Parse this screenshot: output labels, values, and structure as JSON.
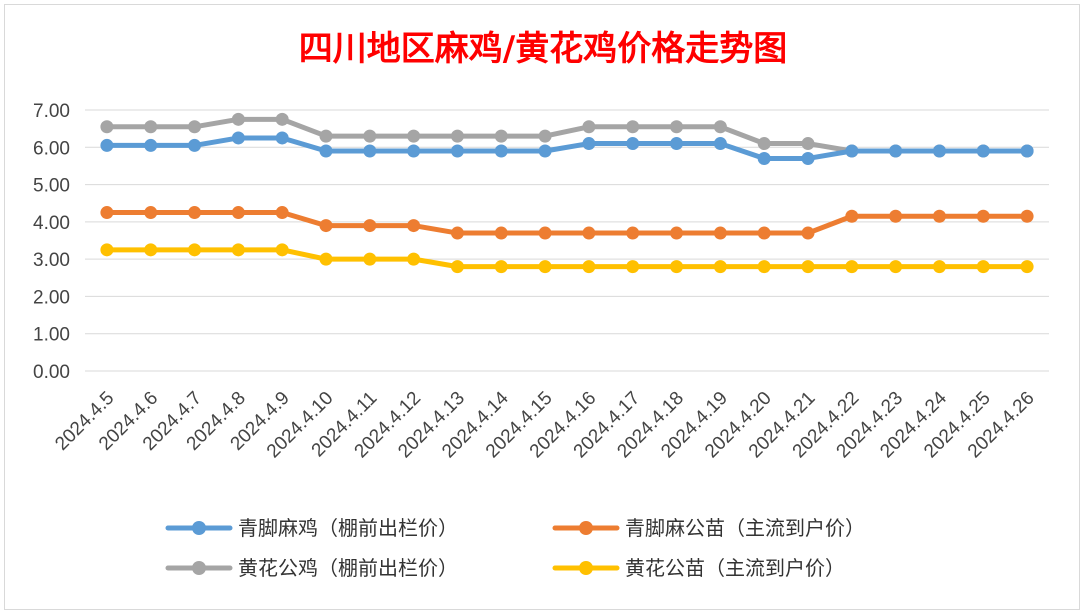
{
  "chart_data": {
    "type": "line",
    "title": "四川地区麻鸡/黄花鸡价格走势图",
    "xlabel": "",
    "ylabel": "",
    "ylim": [
      0,
      7
    ],
    "yticks": [
      "0.00",
      "1.00",
      "2.00",
      "3.00",
      "4.00",
      "5.00",
      "6.00",
      "7.00"
    ],
    "grid": true,
    "legend_position": "bottom",
    "categories": [
      "2024.4.5",
      "2024.4.6",
      "2024.4.7",
      "2024.4.8",
      "2024.4.9",
      "2024.4.10",
      "2024.4.11",
      "2024.4.12",
      "2024.4.13",
      "2024.4.14",
      "2024.4.15",
      "2024.4.16",
      "2024.4.17",
      "2024.4.18",
      "2024.4.19",
      "2024.4.20",
      "2024.4.21",
      "2024.4.22",
      "2024.4.23",
      "2024.4.24",
      "2024.4.25",
      "2024.4.26"
    ],
    "series": [
      {
        "name": "青脚麻鸡（棚前出栏价）",
        "color": "#5b9bd5",
        "values": [
          6.05,
          6.05,
          6.05,
          6.25,
          6.25,
          5.9,
          5.9,
          5.9,
          5.9,
          5.9,
          5.9,
          6.1,
          6.1,
          6.1,
          6.1,
          5.7,
          5.7,
          5.9,
          5.9,
          5.9,
          5.9,
          5.9
        ]
      },
      {
        "name": "青脚麻公苗（主流到户价）",
        "color": "#ed7d31",
        "values": [
          4.25,
          4.25,
          4.25,
          4.25,
          4.25,
          3.9,
          3.9,
          3.9,
          3.7,
          3.7,
          3.7,
          3.7,
          3.7,
          3.7,
          3.7,
          3.7,
          3.7,
          4.15,
          4.15,
          4.15,
          4.15,
          4.15
        ]
      },
      {
        "name": "黄花公鸡（棚前出栏价）",
        "color": "#a5a5a5",
        "values": [
          6.55,
          6.55,
          6.55,
          6.75,
          6.75,
          6.3,
          6.3,
          6.3,
          6.3,
          6.3,
          6.3,
          6.55,
          6.55,
          6.55,
          6.55,
          6.1,
          6.1,
          5.9,
          5.9,
          5.9,
          5.9,
          5.9
        ]
      },
      {
        "name": "黄花公苗（主流到户价）",
        "color": "#ffc000",
        "values": [
          3.25,
          3.25,
          3.25,
          3.25,
          3.25,
          3.0,
          3.0,
          3.0,
          2.8,
          2.8,
          2.8,
          2.8,
          2.8,
          2.8,
          2.8,
          2.8,
          2.8,
          2.8,
          2.8,
          2.8,
          2.8,
          2.8
        ]
      }
    ]
  }
}
